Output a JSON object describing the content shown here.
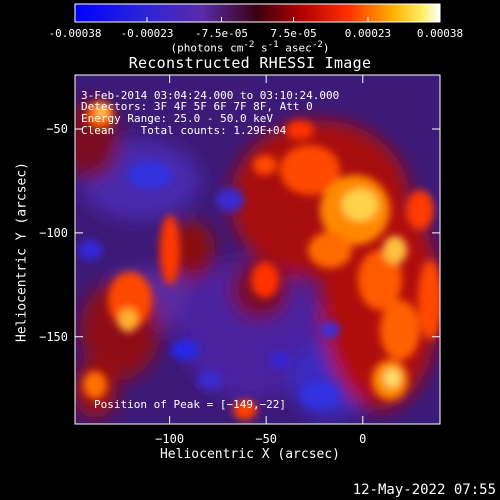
{
  "colorbar": {
    "ticks": [
      "-0.00038",
      "-0.00023",
      "-7.5e-05",
      "7.5e-05",
      "0.00023",
      "0.00038"
    ],
    "tick_values": [
      -0.00038,
      -0.00023,
      -7.5e-05,
      7.5e-05,
      0.00023,
      0.00038
    ],
    "range": [
      -0.00038,
      0.00038
    ],
    "units_html": "(photons cm<sup>-2</sup> s<sup>-1</sup> asec<sup>-2</sup>)",
    "units": "(photons cm-2 s-1 asec-2)"
  },
  "chart_data": {
    "type": "heatmap",
    "title": "Reconstructed RHESSI Image",
    "xlabel": "Heliocentric X (arcsec)",
    "ylabel": "Heliocentric Y (arcsec)",
    "xlim": [
      -149,
      40
    ],
    "ylim": [
      -192,
      -24
    ],
    "xticks": [
      -100,
      -50,
      0
    ],
    "xtick_labels": [
      "−100",
      "−50",
      "0"
    ],
    "yticks": [
      -50,
      -100,
      -150
    ],
    "ytick_labels": [
      "−50",
      "−100",
      "−150"
    ],
    "colormap": "blue-purple-red-yellow-white",
    "annotations": [
      "3-Feb-2014 03:04:24.000 to 03:10:24.000",
      "Detectors: 3F 4F 5F 6F 7F 8F, Att 0",
      "Energy Range: 25.0 - 50.0 keV",
      "Clean    Total counts: 1.29E+04"
    ],
    "peak_label": "Position of Peak = [−149,−22]"
  },
  "timestamp": "12-May-2022 07:55"
}
